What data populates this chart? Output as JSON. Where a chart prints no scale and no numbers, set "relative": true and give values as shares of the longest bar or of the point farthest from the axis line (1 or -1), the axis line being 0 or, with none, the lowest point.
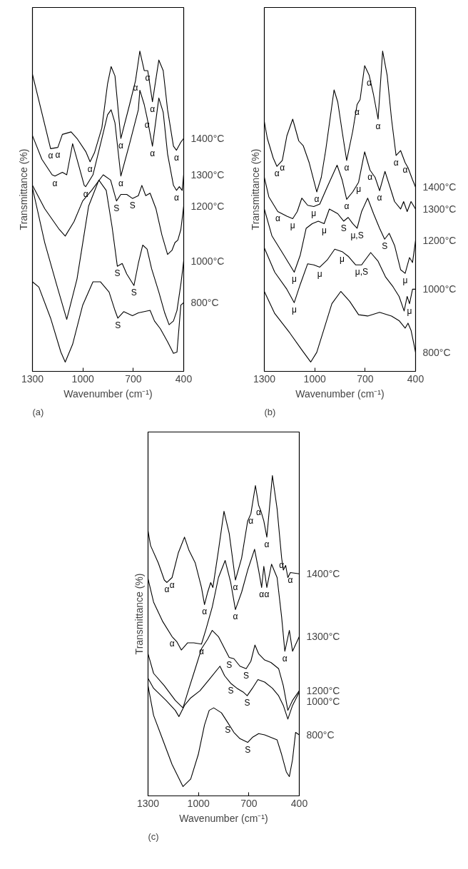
{
  "chart_data": [
    {
      "type": "line",
      "title": "(a)",
      "xlabel": "Wavenumber (cm⁻¹)",
      "ylabel": "Transmittance (%)",
      "relative": true,
      "xlim": [
        1300,
        400
      ],
      "xticks": [
        1300,
        1000,
        700,
        400
      ],
      "series": [
        {
          "name": "1400°C",
          "color": "#000000",
          "x": [
            1300,
            1192,
            1149,
            1122,
            1070,
            1035,
            983,
            957,
            931,
            887,
            853,
            832,
            809,
            774,
            722,
            687,
            661,
            635,
            614,
            586,
            548,
            522,
            496,
            461,
            443,
            417,
            400
          ],
          "values": [
            0.925,
            0.686,
            0.69,
            0.732,
            0.74,
            0.719,
            0.677,
            0.644,
            0.673,
            0.753,
            0.895,
            0.95,
            0.92,
            0.719,
            0.828,
            0.904,
            1.0,
            0.937,
            0.937,
            0.837,
            0.971,
            0.937,
            0.811,
            0.694,
            0.681,
            0.707,
            0.719
          ]
        },
        {
          "name": "1300°C",
          "color": "#000000",
          "x": [
            1300,
            1244,
            1183,
            1166,
            1122,
            1096,
            1061,
            1035,
            992,
            983,
            940,
            887,
            853,
            832,
            809,
            774,
            722,
            670,
            661,
            635,
            618,
            586,
            548,
            522,
            496,
            461,
            443,
            426,
            409,
            400
          ],
          "values": [
            0.728,
            0.652,
            0.602,
            0.598,
            0.61,
            0.602,
            0.702,
            0.652,
            0.568,
            0.564,
            0.602,
            0.719,
            0.795,
            0.811,
            0.769,
            0.598,
            0.702,
            0.811,
            0.874,
            0.828,
            0.786,
            0.694,
            0.849,
            0.803,
            0.669,
            0.568,
            0.552,
            0.564,
            0.552,
            0.602
          ]
        },
        {
          "name": "1200°C",
          "color": "#000000",
          "x": [
            1300,
            1227,
            1140,
            1105,
            1053,
            1001,
            948,
            879,
            835,
            800,
            774,
            739,
            705,
            670,
            649,
            626,
            600,
            565,
            530,
            496,
            470,
            452,
            435,
            417,
            400
          ],
          "values": [
            0.568,
            0.493,
            0.426,
            0.405,
            0.451,
            0.518,
            0.552,
            0.602,
            0.585,
            0.518,
            0.539,
            0.539,
            0.526,
            0.535,
            0.568,
            0.535,
            0.543,
            0.493,
            0.409,
            0.346,
            0.359,
            0.384,
            0.392,
            0.426,
            0.501
          ]
        },
        {
          "name": "1000°C",
          "color": "#000000",
          "x": [
            1300,
            1227,
            1157,
            1096,
            1035,
            966,
            905,
            861,
            826,
            795,
            766,
            739,
            696,
            670,
            644,
            618,
            591,
            548,
            513,
            487,
            461,
            440,
            417,
            400
          ],
          "values": [
            0.56,
            0.384,
            0.25,
            0.137,
            0.267,
            0.501,
            0.585,
            0.552,
            0.434,
            0.308,
            0.317,
            0.283,
            0.246,
            0.317,
            0.376,
            0.363,
            0.3,
            0.225,
            0.158,
            0.12,
            0.132,
            0.166,
            0.25,
            0.325
          ]
        },
        {
          "name": "800°C",
          "color": "#000000",
          "x": [
            1300,
            1262,
            1192,
            1131,
            1105,
            1061,
            1001,
            940,
            896,
            844,
            809,
            792,
            757,
            705,
            670,
            600,
            574,
            539,
            496,
            461,
            440,
            417,
            400
          ],
          "values": [
            0.258,
            0.241,
            0.141,
            0.032,
            0,
            0.057,
            0.183,
            0.258,
            0.258,
            0.225,
            0.166,
            0.141,
            0.162,
            0.149,
            0.158,
            0.166,
            0.132,
            0.107,
            0.065,
            0.028,
            0.032,
            0.183,
            0.191
          ]
        }
      ],
      "annotations": [
        {
          "text": "α",
          "x": 1192,
          "y": 0.686
        },
        {
          "text": "α",
          "x": 1149,
          "y": 0.69
        },
        {
          "text": "α",
          "x": 957,
          "y": 0.644
        },
        {
          "text": "α",
          "x": 774,
          "y": 0.719
        },
        {
          "text": "α",
          "x": 687,
          "y": 0.904
        },
        {
          "text": "α",
          "x": 614,
          "y": 0.937
        },
        {
          "text": "α",
          "x": 586,
          "y": 0.837
        },
        {
          "text": "α",
          "x": 618,
          "y": 0.786
        },
        {
          "text": "α",
          "x": 586,
          "y": 0.694
        },
        {
          "text": "α",
          "x": 443,
          "y": 0.681
        },
        {
          "text": "α",
          "x": 1166,
          "y": 0.598
        },
        {
          "text": "α",
          "x": 774,
          "y": 0.598
        },
        {
          "text": "α",
          "x": 983,
          "y": 0.564
        },
        {
          "text": "S",
          "x": 800,
          "y": 0.518
        },
        {
          "text": "S",
          "x": 705,
          "y": 0.526
        },
        {
          "text": "α",
          "x": 443,
          "y": 0.552
        },
        {
          "text": "S",
          "x": 795,
          "y": 0.308
        },
        {
          "text": "S",
          "x": 696,
          "y": 0.246
        },
        {
          "text": "S",
          "x": 792,
          "y": 0.141
        }
      ]
    },
    {
      "type": "line",
      "title": "(b)",
      "xlabel": "Wavenumber (cm⁻¹)",
      "ylabel": "Transmittance (%)",
      "relative": true,
      "xlim": [
        1300,
        400
      ],
      "xticks": [
        1300,
        1000,
        700,
        400
      ],
      "series": [
        {
          "name": "1400°C",
          "color": "#000000",
          "x": [
            1300,
            1282,
            1247,
            1225,
            1193,
            1166,
            1131,
            1095,
            1068,
            1033,
            988,
            961,
            935,
            885,
            863,
            837,
            810,
            774,
            748,
            730,
            703,
            676,
            650,
            623,
            596,
            569,
            543,
            516,
            489,
            462,
            445,
            418,
            400
          ],
          "values": [
            0.773,
            0.719,
            0.656,
            0.629,
            0.648,
            0.727,
            0.781,
            0.711,
            0.695,
            0.641,
            0.547,
            0.594,
            0.68,
            0.875,
            0.836,
            0.742,
            0.648,
            0.742,
            0.828,
            0.844,
            0.953,
            0.922,
            0.859,
            0.781,
            1.0,
            0.922,
            0.781,
            0.664,
            0.68,
            0.641,
            0.625,
            0.586,
            0.5625
          ]
        },
        {
          "name": "1300°C",
          "color": "#000000",
          "x": [
            1300,
            1273,
            1220,
            1166,
            1131,
            1104,
            1077,
            1042,
            1006,
            970,
            926,
            867,
            837,
            810,
            774,
            739,
            703,
            671,
            641,
            614,
            582,
            552,
            525,
            489,
            471,
            450,
            427,
            409,
            400
          ],
          "values": [
            0.594,
            0.531,
            0.484,
            0.469,
            0.461,
            0.484,
            0.527,
            0.504,
            0.5,
            0.508,
            0.5625,
            0.633,
            0.586,
            0.523,
            0.547,
            0.578,
            0.676,
            0.617,
            0.594,
            0.551,
            0.613,
            0.5625,
            0.516,
            0.492,
            0.516,
            0.484,
            0.516,
            0.5,
            0.492
          ]
        },
        {
          "name": "1200°C",
          "color": "#000000",
          "x": [
            1300,
            1255,
            1184,
            1122,
            1086,
            1051,
            1015,
            979,
            944,
            913,
            863,
            828,
            801,
            774,
            748,
            721,
            685,
            650,
            614,
            584,
            557,
            525,
            489,
            462,
            436,
            418,
            400
          ],
          "values": [
            0.492,
            0.406,
            0.344,
            0.289,
            0.344,
            0.43,
            0.445,
            0.453,
            0.445,
            0.492,
            0.477,
            0.453,
            0.465,
            0.445,
            0.43,
            0.484,
            0.527,
            0.477,
            0.43,
            0.395,
            0.414,
            0.375,
            0.297,
            0.285,
            0.336,
            0.32,
            0.391
          ]
        },
        {
          "name": "1000°C",
          "color": "#000000",
          "x": [
            1300,
            1238,
            1166,
            1122,
            1086,
            1042,
            1006,
            970,
            926,
            881,
            837,
            801,
            757,
            721,
            667,
            623,
            578,
            534,
            498,
            468,
            450,
            436,
            418,
            400
          ],
          "values": [
            0.367,
            0.289,
            0.234,
            0.191,
            0.25,
            0.316,
            0.3125,
            0.305,
            0.328,
            0.363,
            0.355,
            0.34,
            0.3125,
            0.3125,
            0.352,
            0.324,
            0.273,
            0.242,
            0.211,
            0.164,
            0.211,
            0.1875,
            0.234,
            0.234
          ]
        },
        {
          "name": "800°C",
          "color": "#000000",
          "x": [
            1300,
            1238,
            1149,
            1077,
            1024,
            988,
            943,
            898,
            845,
            792,
            739,
            685,
            614,
            543,
            498,
            462,
            445,
            427,
            409,
            400
          ],
          "values": [
            0.227,
            0.156,
            0.094,
            0.039,
            0,
            0.031,
            0.109,
            0.1875,
            0.227,
            0.195,
            0.152,
            0.148,
            0.16,
            0.148,
            0.133,
            0.109,
            0.125,
            0.102,
            0.055,
            0.031
          ]
        }
      ],
      "annotations": [
        {
          "text": "α",
          "x": 1225,
          "y": 0.629
        },
        {
          "text": "α",
          "x": 1193,
          "y": 0.648
        },
        {
          "text": "α",
          "x": 988,
          "y": 0.547
        },
        {
          "text": "α",
          "x": 810,
          "y": 0.648
        },
        {
          "text": "α",
          "x": 748,
          "y": 0.828
        },
        {
          "text": "α",
          "x": 676,
          "y": 0.922
        },
        {
          "text": "α",
          "x": 623,
          "y": 0.781
        },
        {
          "text": "α",
          "x": 516,
          "y": 0.664
        },
        {
          "text": "α",
          "x": 462,
          "y": 0.641
        },
        {
          "text": "α",
          "x": 810,
          "y": 0.523
        },
        {
          "text": "μ",
          "x": 739,
          "y": 0.578
        },
        {
          "text": "α",
          "x": 671,
          "y": 0.617
        },
        {
          "text": "α",
          "x": 614,
          "y": 0.551
        },
        {
          "text": "α",
          "x": 1220,
          "y": 0.484
        },
        {
          "text": "μ",
          "x": 1131,
          "y": 0.461
        },
        {
          "text": "μ",
          "x": 1006,
          "y": 0.5
        },
        {
          "text": "μ",
          "x": 944,
          "y": 0.445
        },
        {
          "text": "S",
          "x": 828,
          "y": 0.453
        },
        {
          "text": "μ,S",
          "x": 748,
          "y": 0.43
        },
        {
          "text": "S",
          "x": 584,
          "y": 0.395
        },
        {
          "text": "μ",
          "x": 1122,
          "y": 0.289
        },
        {
          "text": "μ",
          "x": 970,
          "y": 0.305
        },
        {
          "text": "μ",
          "x": 837,
          "y": 0.355
        },
        {
          "text": "μ,S",
          "x": 721,
          "y": 0.3125
        },
        {
          "text": "μ",
          "x": 462,
          "y": 0.285
        },
        {
          "text": "μ",
          "x": 1122,
          "y": 0.191
        },
        {
          "text": "μ",
          "x": 436,
          "y": 0.1875
        }
      ]
    },
    {
      "type": "line",
      "title": "(c)",
      "xlabel": "Wavenumber (cm⁻¹)",
      "ylabel": "Transmittance (%)",
      "relative": true,
      "xlim": [
        1300,
        400
      ],
      "xticks": [
        1300,
        1000,
        700,
        400
      ],
      "series": [
        {
          "name": "1400°C",
          "color": "#000000",
          "x": [
            1300,
            1285,
            1239,
            1203,
            1188,
            1157,
            1120,
            1083,
            1056,
            1019,
            982,
            964,
            945,
            927,
            914,
            881,
            848,
            817,
            780,
            743,
            707,
            688,
            661,
            642,
            628,
            611,
            593,
            560,
            532,
            505,
            495,
            481,
            468,
            453,
            400
          ],
          "values": [
            0.822,
            0.775,
            0.719,
            0.664,
            0.656,
            0.672,
            0.751,
            0.802,
            0.759,
            0.719,
            0.64,
            0.585,
            0.625,
            0.656,
            0.64,
            0.759,
            0.885,
            0.814,
            0.664,
            0.735,
            0.854,
            0.877,
            0.968,
            0.905,
            0.885,
            0.854,
            0.802,
            1.0,
            0.893,
            0.735,
            0.696,
            0.711,
            0.672,
            0.688,
            0.684
          ]
        },
        {
          "name": "1300°C",
          "color": "#000000",
          "x": [
            1300,
            1267,
            1212,
            1157,
            1129,
            1102,
            1065,
            1028,
            982,
            955,
            918,
            881,
            841,
            808,
            780,
            743,
            707,
            666,
            642,
            624,
            611,
            593,
            565,
            532,
            505,
            486,
            459,
            440,
            400
          ],
          "values": [
            0.668,
            0.593,
            0.53,
            0.482,
            0.466,
            0.439,
            0.462,
            0.462,
            0.458,
            0.506,
            0.577,
            0.672,
            0.727,
            0.656,
            0.569,
            0.625,
            0.696,
            0.763,
            0.696,
            0.64,
            0.708,
            0.64,
            0.715,
            0.672,
            0.545,
            0.435,
            0.502,
            0.435,
            0.482
          ]
        },
        {
          "name": "1200°C",
          "color": "#000000",
          "x": [
            1300,
            1267,
            1203,
            1138,
            1092,
            1056,
            1019,
            982,
            945,
            918,
            881,
            844,
            817,
            789,
            753,
            716,
            688,
            664,
            642,
            606,
            569,
            541,
            523,
            495,
            468,
            440,
            400
          ],
          "values": [
            0.427,
            0.364,
            0.324,
            0.277,
            0.253,
            0.316,
            0.379,
            0.443,
            0.474,
            0.502,
            0.482,
            0.443,
            0.415,
            0.411,
            0.387,
            0.379,
            0.403,
            0.455,
            0.427,
            0.407,
            0.399,
            0.387,
            0.379,
            0.324,
            0.245,
            0.277,
            0.308
          ]
        },
        {
          "name": "1000°C",
          "color": "#000000",
          "x": [
            1300,
            1267,
            1193,
            1138,
            1116,
            1083,
            1046,
            991,
            936,
            872,
            844,
            808,
            771,
            734,
            710,
            679,
            646,
            606,
            560,
            523,
            495,
            468,
            440,
            400
          ],
          "values": [
            0.348,
            0.316,
            0.277,
            0.245,
            0.225,
            0.261,
            0.285,
            0.308,
            0.344,
            0.387,
            0.356,
            0.332,
            0.316,
            0.304,
            0.292,
            0.316,
            0.344,
            0.336,
            0.316,
            0.292,
            0.261,
            0.217,
            0.261,
            0.304
          ]
        },
        {
          "name": "800°C",
          "color": "#000000",
          "x": [
            1300,
            1267,
            1212,
            1157,
            1092,
            1046,
            1001,
            964,
            936,
            909,
            863,
            826,
            789,
            753,
            707,
            679,
            642,
            606,
            569,
            532,
            505,
            477,
            459,
            440,
            422,
            400
          ],
          "values": [
            0.324,
            0.229,
            0.15,
            0.071,
            0,
            0.024,
            0.103,
            0.198,
            0.245,
            0.253,
            0.237,
            0.206,
            0.174,
            0.154,
            0.142,
            0.158,
            0.17,
            0.166,
            0.158,
            0.15,
            0.103,
            0.047,
            0.032,
            0.087,
            0.174,
            0.166
          ]
        }
      ],
      "annotations": [
        {
          "text": "α",
          "x": 1188,
          "y": 0.656
        },
        {
          "text": "α",
          "x": 1157,
          "y": 0.672
        },
        {
          "text": "α",
          "x": 964,
          "y": 0.585
        },
        {
          "text": "α",
          "x": 780,
          "y": 0.664
        },
        {
          "text": "α",
          "x": 780,
          "y": 0.569
        },
        {
          "text": "α",
          "x": 688,
          "y": 0.877
        },
        {
          "text": "α",
          "x": 642,
          "y": 0.905
        },
        {
          "text": "α",
          "x": 593,
          "y": 0.802
        },
        {
          "text": "α",
          "x": 624,
          "y": 0.64
        },
        {
          "text": "α",
          "x": 593,
          "y": 0.64
        },
        {
          "text": "α",
          "x": 505,
          "y": 0.735
        },
        {
          "text": "α",
          "x": 453,
          "y": 0.688
        },
        {
          "text": "α",
          "x": 1157,
          "y": 0.482
        },
        {
          "text": "α",
          "x": 982,
          "y": 0.458
        },
        {
          "text": "α",
          "x": 486,
          "y": 0.435
        },
        {
          "text": "S",
          "x": 817,
          "y": 0.415
        },
        {
          "text": "S",
          "x": 716,
          "y": 0.379
        },
        {
          "text": "S",
          "x": 808,
          "y": 0.332
        },
        {
          "text": "S",
          "x": 710,
          "y": 0.292
        },
        {
          "text": "S",
          "x": 826,
          "y": 0.206
        },
        {
          "text": "S",
          "x": 707,
          "y": 0.142
        }
      ]
    }
  ]
}
